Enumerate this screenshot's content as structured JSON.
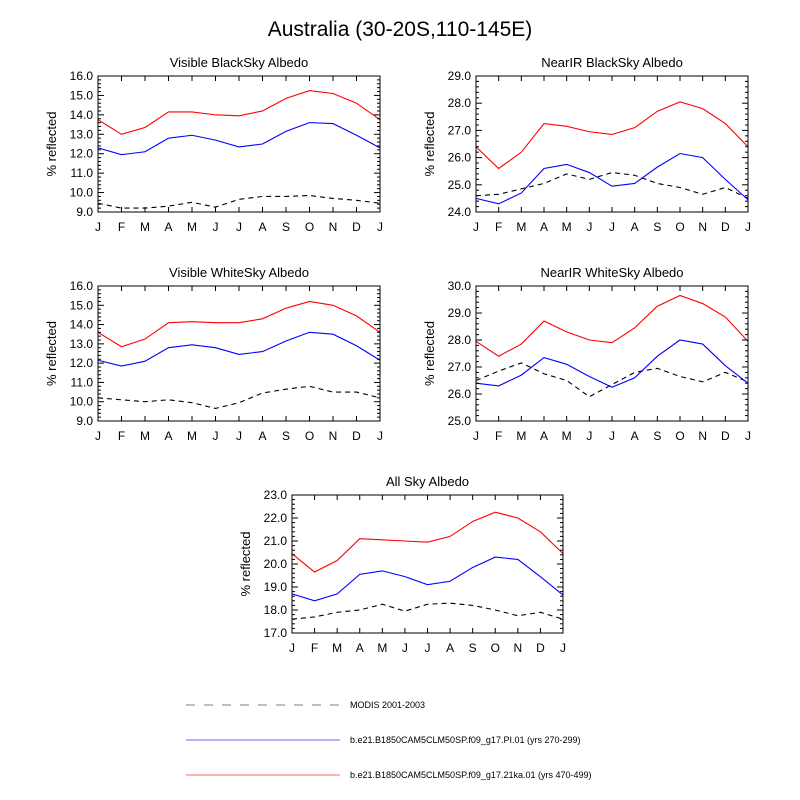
{
  "page_title": "Australia (30-20S,110-145E)",
  "colors": {
    "modis": "#000000",
    "pi": "#0000ff",
    "ka21": "#ff0000",
    "legend_modis": "#999999",
    "legend_pi": "#8080ff",
    "legend_ka21": "#ff8080"
  },
  "legend": [
    {
      "key": "modis",
      "label": "MODIS 2001-2003",
      "style": "dashed"
    },
    {
      "key": "pi",
      "label": "b.e21.B1850CAM5CLM50SP.f09_g17.PI.01 (yrs 270-299)",
      "style": "solid"
    },
    {
      "key": "ka21",
      "label": "b.e21.B1850CAM5CLM50SP.f09_g17.21ka.01 (yrs 470-499)",
      "style": "solid"
    }
  ],
  "chart_data": [
    {
      "type": "line",
      "title": "Visible BlackSky Albedo",
      "ylabel": "% reflected",
      "xlabel": "",
      "categories": [
        "J",
        "F",
        "M",
        "A",
        "M",
        "J",
        "J",
        "A",
        "S",
        "O",
        "N",
        "D",
        "J"
      ],
      "ylim": [
        9.0,
        16.0
      ],
      "yticks": [
        "16.0",
        "15.0",
        "14.0",
        "13.0",
        "12.0",
        "11.0",
        "10.0",
        "9.0"
      ],
      "ytick_values": [
        16,
        15,
        14,
        13,
        12,
        11,
        10,
        9
      ],
      "series": [
        {
          "name": "MODIS 2001-2003",
          "key": "modis",
          "dashed": true,
          "values": [
            9.45,
            9.2,
            9.2,
            9.3,
            9.5,
            9.25,
            9.65,
            9.8,
            9.8,
            9.85,
            9.7,
            9.6,
            9.45
          ]
        },
        {
          "name": "b.e21.B1850CAM5CLM50SP.f09_g17.PI.01 (yrs 270-299)",
          "key": "pi",
          "dashed": false,
          "values": [
            12.3,
            11.95,
            12.1,
            12.8,
            12.95,
            12.7,
            12.35,
            12.5,
            13.15,
            13.6,
            13.55,
            12.95,
            12.3
          ]
        },
        {
          "name": "b.e21.B1850CAM5CLM50SP.f09_g17.21ka.01 (yrs 470-499)",
          "key": "ka21",
          "dashed": false,
          "values": [
            13.75,
            13.0,
            13.35,
            14.15,
            14.15,
            14.0,
            13.95,
            14.2,
            14.85,
            15.25,
            15.1,
            14.6,
            13.75
          ]
        }
      ]
    },
    {
      "type": "line",
      "title": "NearIR BlackSky Albedo",
      "ylabel": "% reflected",
      "xlabel": "",
      "categories": [
        "J",
        "F",
        "M",
        "A",
        "M",
        "J",
        "J",
        "A",
        "S",
        "O",
        "N",
        "D",
        "J"
      ],
      "ylim": [
        24.0,
        29.0
      ],
      "yticks": [
        "29.0",
        "28.0",
        "27.0",
        "26.0",
        "25.0",
        "24.0"
      ],
      "ytick_values": [
        29,
        28,
        27,
        26,
        25,
        24
      ],
      "series": [
        {
          "name": "MODIS 2001-2003",
          "key": "modis",
          "dashed": true,
          "values": [
            24.6,
            24.65,
            24.85,
            25.05,
            25.4,
            25.2,
            25.45,
            25.35,
            25.05,
            24.9,
            24.65,
            24.9,
            24.5
          ]
        },
        {
          "name": "b.e21.B1850CAM5CLM50SP.f09_g17.PI.01 (yrs 270-299)",
          "key": "pi",
          "dashed": false,
          "values": [
            24.5,
            24.3,
            24.7,
            25.6,
            25.75,
            25.45,
            24.95,
            25.05,
            25.65,
            26.15,
            26.0,
            25.2,
            24.45
          ]
        },
        {
          "name": "b.e21.B1850CAM5CLM50SP.f09_g17.21ka.01 (yrs 470-499)",
          "key": "ka21",
          "dashed": false,
          "values": [
            26.4,
            25.6,
            26.2,
            27.25,
            27.15,
            26.95,
            26.85,
            27.1,
            27.7,
            28.05,
            27.8,
            27.25,
            26.4
          ]
        }
      ]
    },
    {
      "type": "line",
      "title": "Visible WhiteSky Albedo",
      "ylabel": "% reflected",
      "xlabel": "",
      "categories": [
        "J",
        "F",
        "M",
        "A",
        "M",
        "J",
        "J",
        "A",
        "S",
        "O",
        "N",
        "D",
        "J"
      ],
      "ylim": [
        9.0,
        16.0
      ],
      "yticks": [
        "16.0",
        "15.0",
        "14.0",
        "13.0",
        "12.0",
        "11.0",
        "10.0",
        "9.0"
      ],
      "ytick_values": [
        16,
        15,
        14,
        13,
        12,
        11,
        10,
        9
      ],
      "series": [
        {
          "name": "MODIS 2001-2003",
          "key": "modis",
          "dashed": true,
          "values": [
            10.2,
            10.1,
            10.0,
            10.1,
            9.95,
            9.65,
            9.95,
            10.45,
            10.65,
            10.8,
            10.5,
            10.5,
            10.2
          ]
        },
        {
          "name": "b.e21.B1850CAM5CLM50SP.f09_g17.PI.01 (yrs 270-299)",
          "key": "pi",
          "dashed": false,
          "values": [
            12.15,
            11.85,
            12.1,
            12.8,
            12.95,
            12.8,
            12.45,
            12.6,
            13.15,
            13.6,
            13.5,
            12.9,
            12.15
          ]
        },
        {
          "name": "b.e21.B1850CAM5CLM50SP.f09_g17.21ka.01 (yrs 470-499)",
          "key": "ka21",
          "dashed": false,
          "values": [
            13.6,
            12.85,
            13.25,
            14.1,
            14.15,
            14.1,
            14.1,
            14.3,
            14.85,
            15.2,
            15.0,
            14.45,
            13.6
          ]
        }
      ]
    },
    {
      "type": "line",
      "title": "NearIR WhiteSky Albedo",
      "ylabel": "% reflected",
      "xlabel": "",
      "categories": [
        "J",
        "F",
        "M",
        "A",
        "M",
        "J",
        "J",
        "A",
        "S",
        "O",
        "N",
        "D",
        "J"
      ],
      "ylim": [
        25.0,
        30.0
      ],
      "yticks": [
        "30.0",
        "29.0",
        "28.0",
        "27.0",
        "26.0",
        "25.0"
      ],
      "ytick_values": [
        30,
        29,
        28,
        27,
        26,
        25
      ],
      "series": [
        {
          "name": "MODIS 2001-2003",
          "key": "modis",
          "dashed": true,
          "values": [
            26.5,
            26.85,
            27.15,
            26.75,
            26.5,
            25.9,
            26.35,
            26.8,
            26.95,
            26.65,
            26.45,
            26.8,
            26.45
          ]
        },
        {
          "name": "b.e21.B1850CAM5CLM50SP.f09_g17.PI.01 (yrs 270-299)",
          "key": "pi",
          "dashed": false,
          "values": [
            26.4,
            26.3,
            26.7,
            27.35,
            27.1,
            26.65,
            26.25,
            26.6,
            27.4,
            28.0,
            27.85,
            27.05,
            26.4
          ]
        },
        {
          "name": "b.e21.B1850CAM5CLM50SP.f09_g17.21ka.01 (yrs 470-499)",
          "key": "ka21",
          "dashed": false,
          "values": [
            27.95,
            27.4,
            27.85,
            28.7,
            28.3,
            28.0,
            27.9,
            28.45,
            29.25,
            29.65,
            29.35,
            28.85,
            27.95
          ]
        }
      ]
    },
    {
      "type": "line",
      "title": "All Sky Albedo",
      "ylabel": "% reflected",
      "xlabel": "",
      "categories": [
        "J",
        "F",
        "M",
        "A",
        "M",
        "J",
        "J",
        "A",
        "S",
        "O",
        "N",
        "D",
        "J"
      ],
      "ylim": [
        17.0,
        23.0
      ],
      "yticks": [
        "23.0",
        "22.0",
        "21.0",
        "20.0",
        "19.0",
        "18.0",
        "17.0"
      ],
      "ytick_values": [
        23,
        22,
        21,
        20,
        19,
        18,
        17
      ],
      "series": [
        {
          "name": "MODIS 2001-2003",
          "key": "modis",
          "dashed": true,
          "values": [
            17.6,
            17.7,
            17.9,
            18.0,
            18.25,
            17.95,
            18.25,
            18.3,
            18.2,
            18.0,
            17.75,
            17.9,
            17.6
          ]
        },
        {
          "name": "b.e21.B1850CAM5CLM50SP.f09_g17.PI.01 (yrs 270-299)",
          "key": "pi",
          "dashed": false,
          "values": [
            18.7,
            18.4,
            18.7,
            19.55,
            19.7,
            19.45,
            19.1,
            19.25,
            19.85,
            20.3,
            20.2,
            19.45,
            18.65
          ]
        },
        {
          "name": "b.e21.B1850CAM5CLM50SP.f09_g17.21ka.01 (yrs 470-499)",
          "key": "ka21",
          "dashed": false,
          "values": [
            20.45,
            19.65,
            20.15,
            21.1,
            21.05,
            21.0,
            20.95,
            21.2,
            21.85,
            22.25,
            22.0,
            21.4,
            20.45
          ]
        }
      ]
    }
  ]
}
